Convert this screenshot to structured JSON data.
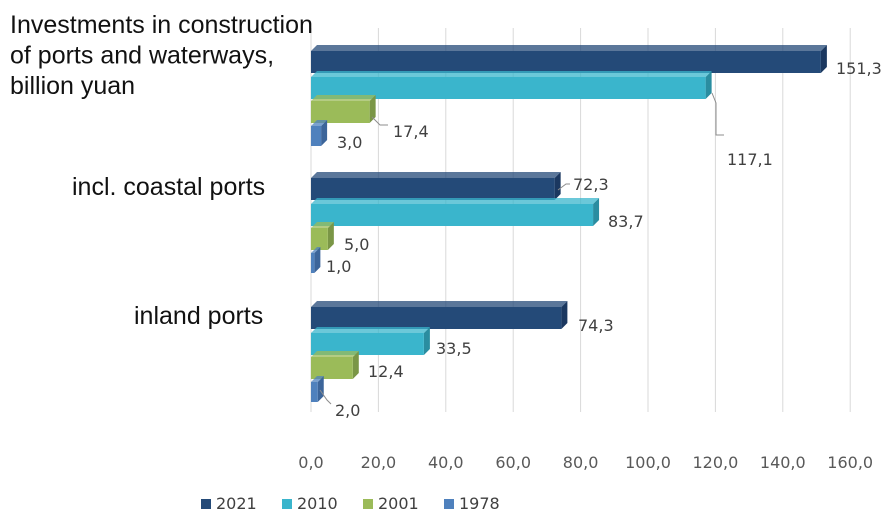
{
  "chart_data": {
    "type": "bar",
    "orientation": "horizontal",
    "categories": [
      "Investments in construction of ports and waterways, billion yuan",
      "incl. coastal ports",
      "inland ports"
    ],
    "category_lines": [
      [
        "Investments in construction",
        "of ports and waterways,",
        "billion yuan"
      ],
      [
        "incl. coastal ports"
      ],
      [
        "inland ports"
      ]
    ],
    "series": [
      {
        "name": "2021",
        "color": "#244a78",
        "side": "#1b3860",
        "values": [
          151.3,
          72.3,
          74.3
        ],
        "labels": [
          "151,3",
          "72,3",
          "74,3"
        ]
      },
      {
        "name": "2010",
        "color": "#3ab5cc",
        "side": "#2a8da0",
        "values": [
          117.1,
          83.7,
          33.5
        ],
        "labels": [
          "117,1",
          "83,7",
          "33,5"
        ]
      },
      {
        "name": "2001",
        "color": "#9bbb59",
        "side": "#7a9646",
        "values": [
          17.4,
          5.0,
          12.4
        ],
        "labels": [
          "17,4",
          "5,0",
          "12,4"
        ]
      },
      {
        "name": "1978",
        "color": "#4f81bd",
        "side": "#3c659a",
        "values": [
          3.0,
          1.0,
          2.0
        ],
        "labels": [
          "3,0",
          "1,0",
          "2,0"
        ]
      }
    ],
    "xlim": [
      0,
      160
    ],
    "xticks": [
      0,
      20,
      40,
      60,
      80,
      100,
      120,
      140,
      160
    ],
    "xtick_labels": [
      "0,0",
      "20,0",
      "40,0",
      "60,0",
      "80,0",
      "100,0",
      "120,0",
      "140,0",
      "160,0"
    ],
    "grid": true,
    "legend_position": "bottom-left"
  }
}
